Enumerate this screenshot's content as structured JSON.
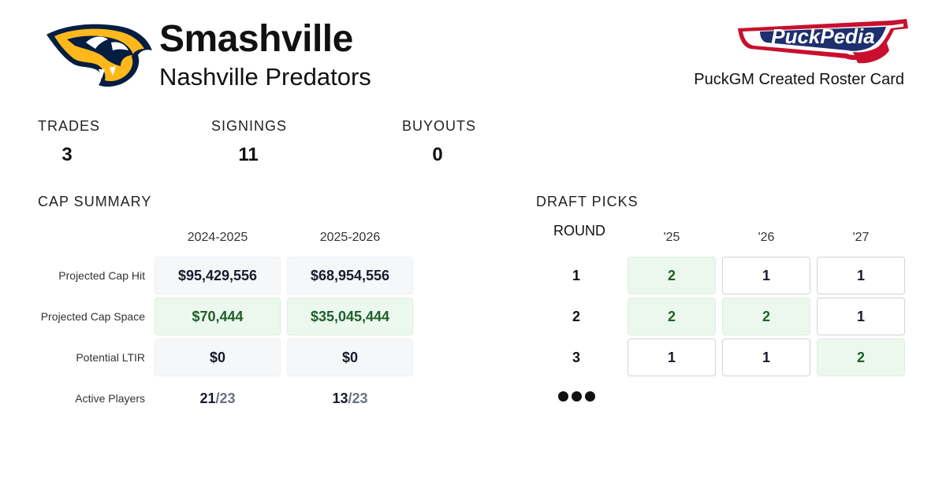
{
  "header": {
    "team_short": "Smashville",
    "team_full": "Nashville Predators",
    "caption": "PuckGM Created Roster Card",
    "team_logo_icon": "predators-logo-icon",
    "brand_logo_text": "PuckPedia"
  },
  "stats": [
    {
      "label": "TRADES",
      "value": "3"
    },
    {
      "label": "SIGNINGS",
      "value": "11"
    },
    {
      "label": "BUYOUTS",
      "value": "0"
    }
  ],
  "cap_summary": {
    "title": "CAP SUMMARY",
    "seasons": [
      "2024-2025",
      "2025-2026"
    ],
    "rows": [
      {
        "label": "Projected Cap Hit",
        "values": [
          "$95,429,556",
          "$68,954,556"
        ]
      },
      {
        "label": "Projected Cap Space",
        "values": [
          "$70,444",
          "$35,045,444"
        ]
      },
      {
        "label": "Potential LTIR",
        "values": [
          "$0",
          "$0"
        ]
      }
    ],
    "active_players": {
      "label": "Active Players",
      "values": [
        {
          "count": "21",
          "max": "/23"
        },
        {
          "count": "13",
          "max": "/23"
        }
      ]
    }
  },
  "draft_picks": {
    "title": "DRAFT PICKS",
    "round_label": "ROUND",
    "years": [
      "'25",
      "'26",
      "'27"
    ],
    "rounds": [
      {
        "round": "1",
        "picks": [
          "2",
          "1",
          "1"
        ]
      },
      {
        "round": "2",
        "picks": [
          "2",
          "2",
          "1"
        ]
      },
      {
        "round": "3",
        "picks": [
          "1",
          "1",
          "2"
        ]
      }
    ]
  },
  "colors": {
    "navy": "#041E42",
    "gold": "#FFB81C",
    "green_bg": "#ecf8ed",
    "green_text": "#1f5f2b",
    "puckpedia_red": "#c8102e",
    "puckpedia_blue": "#1d2f6f"
  }
}
